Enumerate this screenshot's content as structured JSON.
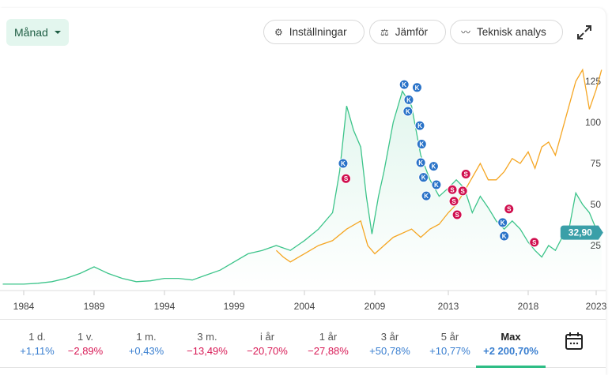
{
  "toolbar": {
    "period": "Månad",
    "settings": "Inställningar",
    "compare": "Jämför",
    "technical": "Teknisk analys",
    "icons": [
      "gear-icon",
      "scale-icon",
      "trend-line-icon",
      "expand-icon",
      "calendar-icon"
    ]
  },
  "chart_data": {
    "type": "line",
    "x_ticks": [
      "1984",
      "1989",
      "1994",
      "1999",
      "2004",
      "2009",
      "2013",
      "2018",
      "2023"
    ],
    "y_ticks": [
      "25",
      "50",
      "75",
      "100",
      "125"
    ],
    "ylim": [
      0,
      140
    ],
    "current_value_label": "32,90",
    "colors": {
      "stock": "#3cc48a",
      "compare": "#f5a623",
      "buy": "#2a73c8",
      "sell": "#d0104f",
      "price_tag": "#3a9fa8"
    },
    "series": [
      {
        "role": "stock",
        "points": [
          [
            1982.5,
            1.5
          ],
          [
            1984,
            1.5
          ],
          [
            1985,
            2
          ],
          [
            1986,
            3
          ],
          [
            1987,
            5
          ],
          [
            1988,
            8
          ],
          [
            1989,
            12
          ],
          [
            1989.5,
            10
          ],
          [
            1990,
            8
          ],
          [
            1991,
            5
          ],
          [
            1992,
            3
          ],
          [
            1993,
            3.5
          ],
          [
            1994,
            5
          ],
          [
            1995,
            5
          ],
          [
            1996,
            4
          ],
          [
            1997,
            7
          ],
          [
            1998,
            10
          ],
          [
            1999,
            15
          ],
          [
            2000,
            20
          ],
          [
            2001,
            22
          ],
          [
            2002,
            25
          ],
          [
            2003,
            22
          ],
          [
            2004,
            28
          ],
          [
            2005,
            35
          ],
          [
            2006,
            45
          ],
          [
            2006.5,
            70
          ],
          [
            2007,
            110
          ],
          [
            2007.5,
            95
          ],
          [
            2008,
            85
          ],
          [
            2008.4,
            55
          ],
          [
            2008.8,
            32
          ],
          [
            2009.2,
            55
          ],
          [
            2009.5,
            70
          ],
          [
            2010,
            100
          ],
          [
            2010.5,
            119
          ],
          [
            2011,
            110
          ],
          [
            2011.5,
            80
          ],
          [
            2012,
            65
          ],
          [
            2012.5,
            55
          ],
          [
            2013,
            60
          ],
          [
            2013.5,
            65
          ],
          [
            2014,
            60
          ],
          [
            2014.5,
            45
          ],
          [
            2015,
            55
          ],
          [
            2015.5,
            48
          ],
          [
            2016,
            40
          ],
          [
            2016.5,
            35
          ],
          [
            2017,
            40
          ],
          [
            2017.5,
            35
          ],
          [
            2018,
            27
          ],
          [
            2018.5,
            22
          ],
          [
            2019,
            18
          ],
          [
            2019.5,
            25
          ],
          [
            2020,
            22
          ],
          [
            2020.5,
            30
          ],
          [
            2021,
            35
          ],
          [
            2021.5,
            57
          ],
          [
            2022,
            50
          ],
          [
            2022.5,
            45
          ],
          [
            2023,
            35
          ],
          [
            2023.4,
            32.9
          ]
        ]
      },
      {
        "role": "compare",
        "points": [
          [
            2002,
            22
          ],
          [
            2002.5,
            18
          ],
          [
            2003,
            15
          ],
          [
            2004,
            20
          ],
          [
            2005,
            25
          ],
          [
            2006,
            28
          ],
          [
            2007,
            35
          ],
          [
            2008,
            40
          ],
          [
            2008.5,
            25
          ],
          [
            2009,
            20
          ],
          [
            2009.5,
            25
          ],
          [
            2010,
            30
          ],
          [
            2011,
            35
          ],
          [
            2011.5,
            30
          ],
          [
            2012,
            35
          ],
          [
            2012.5,
            38
          ],
          [
            2013,
            45
          ],
          [
            2013.5,
            50
          ],
          [
            2014,
            58
          ],
          [
            2015,
            75
          ],
          [
            2015.5,
            65
          ],
          [
            2016,
            65
          ],
          [
            2016.5,
            70
          ],
          [
            2017,
            78
          ],
          [
            2017.5,
            75
          ],
          [
            2018,
            82
          ],
          [
            2018.5,
            72
          ],
          [
            2019,
            85
          ],
          [
            2019.5,
            88
          ],
          [
            2020,
            80
          ],
          [
            2020.5,
            95
          ],
          [
            2021,
            110
          ],
          [
            2021.5,
            125
          ],
          [
            2022,
            132
          ],
          [
            2022.5,
            108
          ],
          [
            2023,
            120
          ],
          [
            2023.4,
            132
          ]
        ]
      }
    ],
    "markers": [
      {
        "type": "K",
        "x": 2006.75,
        "y": 75
      },
      {
        "type": "S",
        "x": 2006.95,
        "y": 72
      },
      {
        "type": "K",
        "x": 2010.6,
        "y": 123
      },
      {
        "type": "K",
        "x": 2010.85,
        "y": 120
      },
      {
        "type": "K",
        "x": 2010.8,
        "y": 113
      },
      {
        "type": "K",
        "x": 2011.3,
        "y": 115
      },
      {
        "type": "K",
        "x": 2011.45,
        "y": 98
      },
      {
        "type": "K",
        "x": 2011.55,
        "y": 93
      },
      {
        "type": "K",
        "x": 2011.5,
        "y": 88
      },
      {
        "type": "K",
        "x": 2011.65,
        "y": 79
      },
      {
        "type": "K",
        "x": 2011.8,
        "y": 74
      },
      {
        "type": "K",
        "x": 2012.2,
        "y": 67
      },
      {
        "type": "K",
        "x": 2012.35,
        "y": 62
      },
      {
        "type": "S",
        "x": 2013.25,
        "y": 59
      },
      {
        "type": "S",
        "x": 2013.35,
        "y": 52
      },
      {
        "type": "S",
        "x": 2013.55,
        "y": 50
      },
      {
        "type": "S",
        "x": 2013.9,
        "y": 52
      },
      {
        "type": "S",
        "x": 2014.1,
        "y": 56
      },
      {
        "type": "K",
        "x": 2016.4,
        "y": 39
      },
      {
        "type": "K",
        "x": 2016.5,
        "y": 37
      },
      {
        "type": "S",
        "x": 2016.8,
        "y": 41
      },
      {
        "type": "S",
        "x": 2018.45,
        "y": 27
      }
    ]
  },
  "periods": [
    {
      "label": "1 d.",
      "value": "+1,11%",
      "sign": "pos"
    },
    {
      "label": "1 v.",
      "value": "−2,89%",
      "sign": "neg"
    },
    {
      "label": "1 m.",
      "value": "+0,43%",
      "sign": "pos"
    },
    {
      "label": "3 m.",
      "value": "−13,49%",
      "sign": "neg"
    },
    {
      "label": "i år",
      "value": "−20,70%",
      "sign": "neg"
    },
    {
      "label": "1 år",
      "value": "−27,88%",
      "sign": "neg"
    },
    {
      "label": "3 år",
      "value": "+50,78%",
      "sign": "pos"
    },
    {
      "label": "5 år",
      "value": "+10,77%",
      "sign": "pos"
    },
    {
      "label": "Max",
      "value": "+2 200,70%",
      "sign": "pos",
      "active": true
    }
  ]
}
